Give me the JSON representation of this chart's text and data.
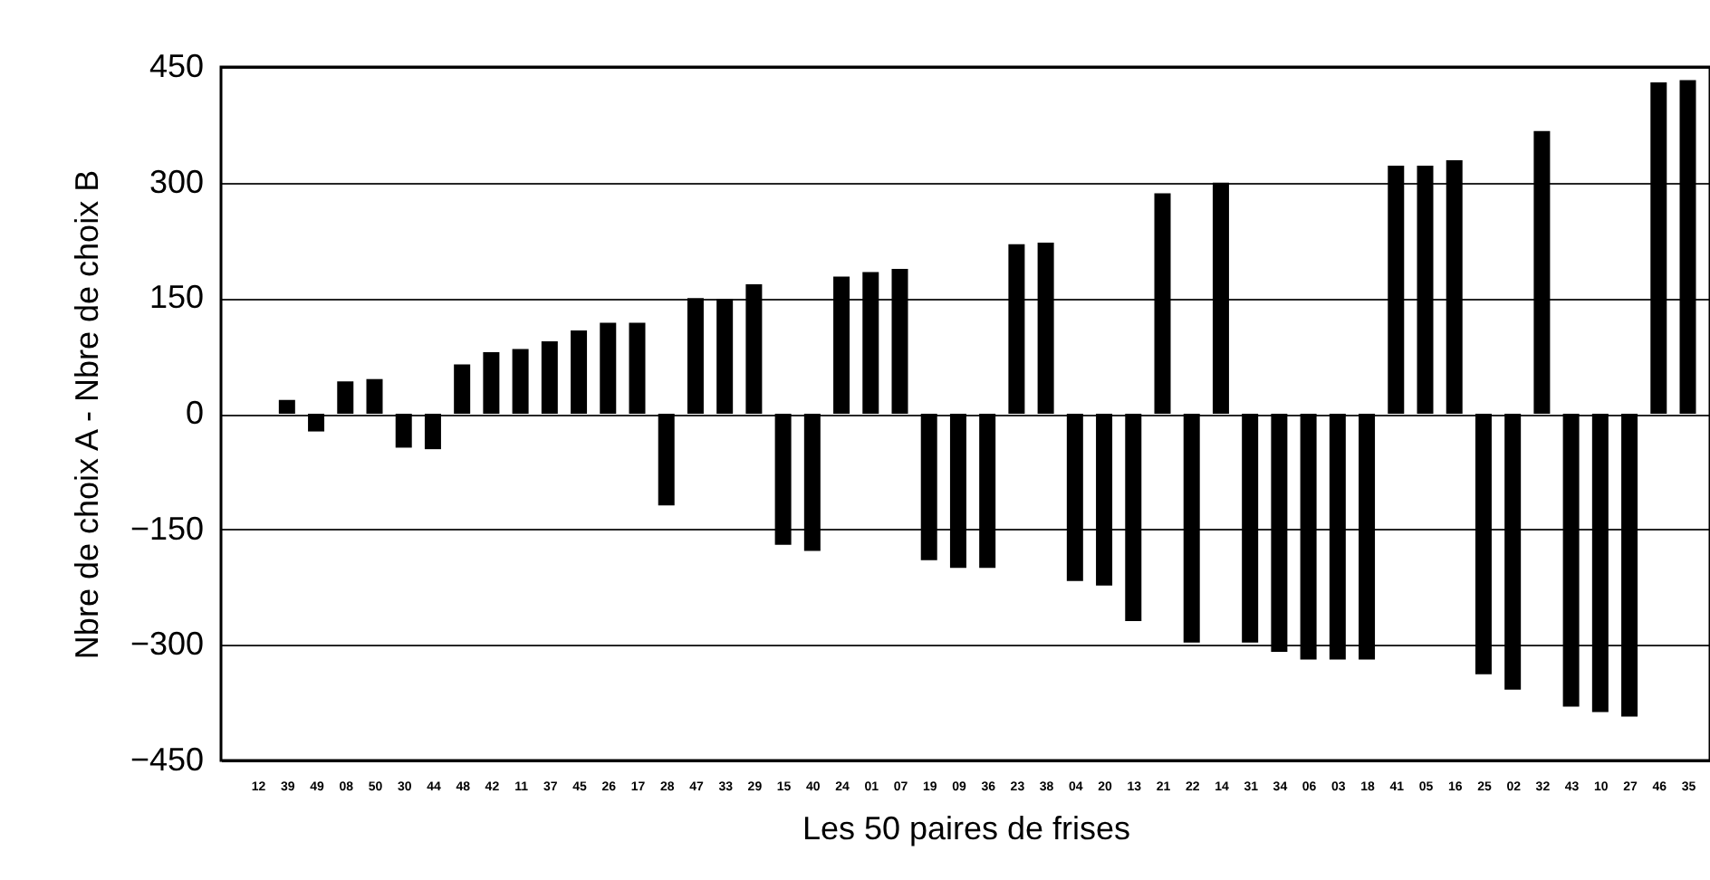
{
  "chart_data": {
    "type": "bar",
    "xlabel": "Les 50 paires de frises",
    "ylabel": "Nbre de choix A - Nbre de choix B",
    "categories": [
      "12",
      "39",
      "49",
      "08",
      "50",
      "30",
      "44",
      "48",
      "42",
      "11",
      "37",
      "45",
      "26",
      "17",
      "28",
      "47",
      "33",
      "29",
      "15",
      "40",
      "24",
      "01",
      "07",
      "19",
      "09",
      "36",
      "23",
      "38",
      "04",
      "20",
      "13",
      "21",
      "22",
      "14",
      "31",
      "34",
      "06",
      "03",
      "18",
      "41",
      "05",
      "16",
      "25",
      "02",
      "32",
      "43",
      "10",
      "27",
      "46",
      "35"
    ],
    "values": [
      0,
      18,
      -23,
      42,
      45,
      -44,
      -46,
      64,
      80,
      84,
      94,
      108,
      118,
      118,
      -119,
      150,
      149,
      168,
      -170,
      -178,
      178,
      184,
      188,
      -190,
      -200,
      -200,
      220,
      222,
      -217,
      -223,
      -269,
      286,
      -297,
      300,
      -297,
      -309,
      -319,
      -319,
      -319,
      322,
      322,
      329,
      -338,
      -358,
      367,
      -380,
      -387,
      -393,
      430,
      433
    ],
    "color": "#000000",
    "ylim": [
      -450,
      450
    ],
    "yticks": [
      -450,
      -300,
      -150,
      0,
      150,
      300,
      450
    ],
    "grid": "y"
  }
}
